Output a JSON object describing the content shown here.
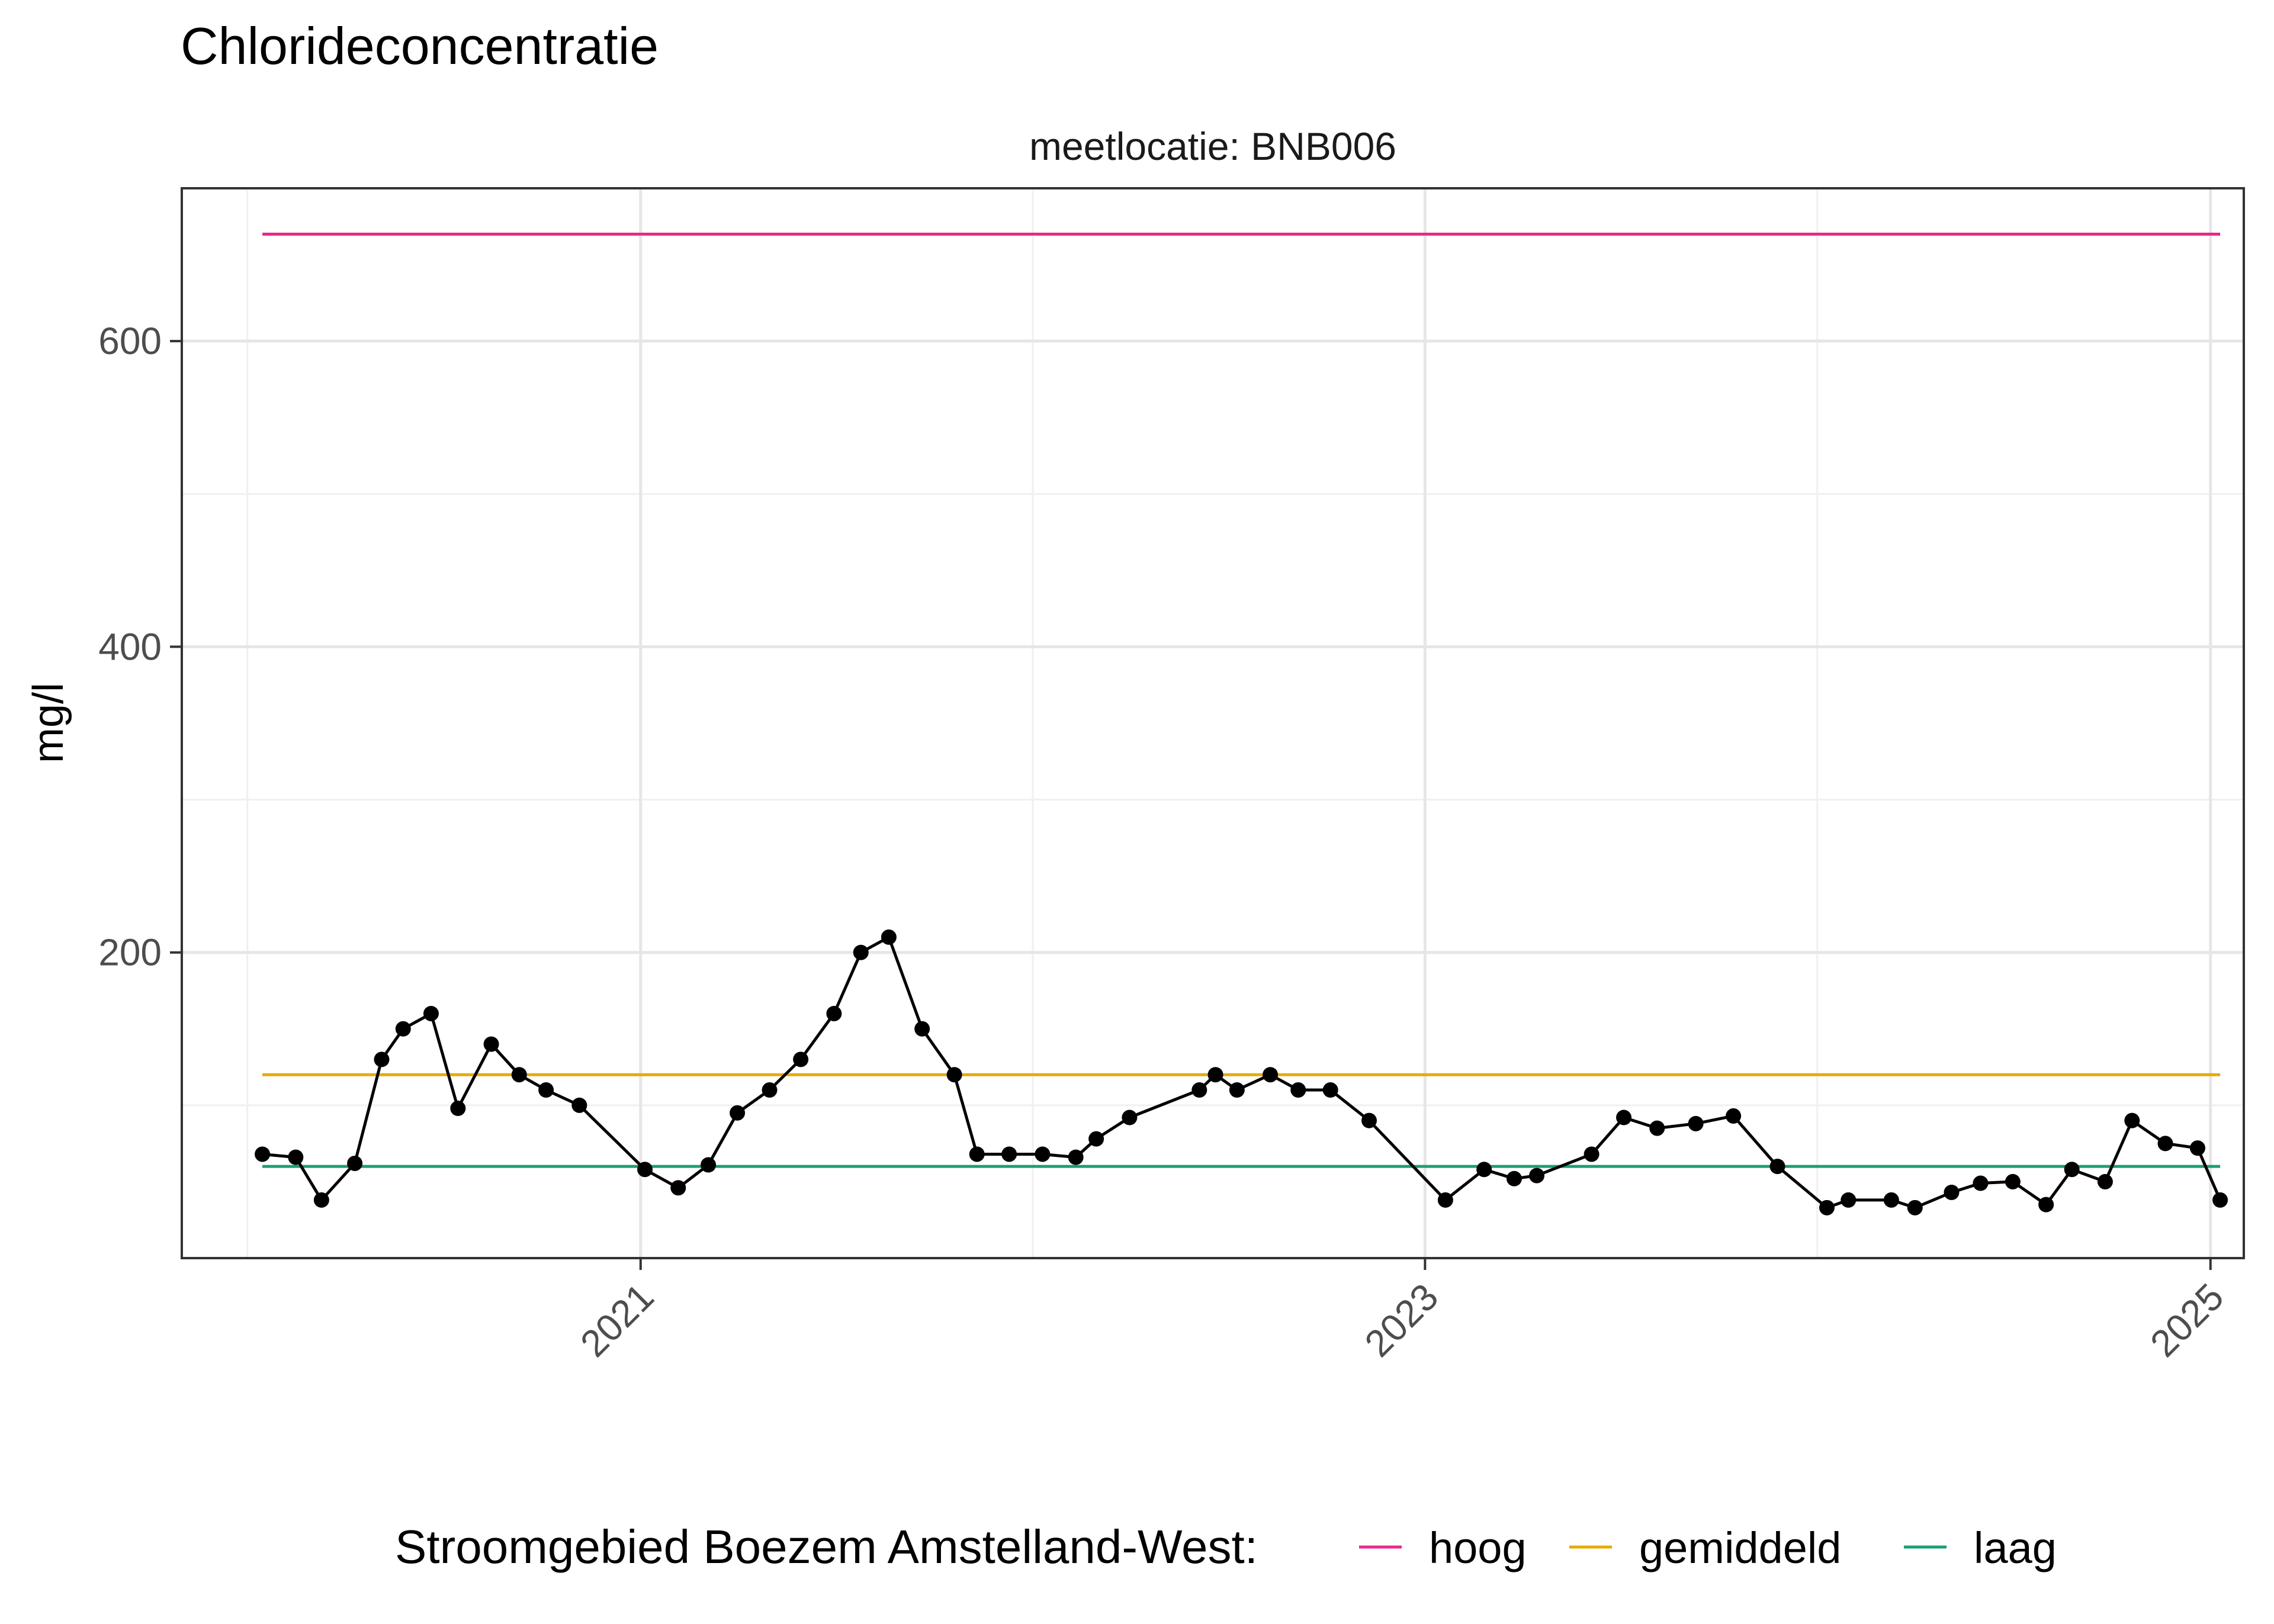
{
  "chart_data": {
    "type": "line",
    "title": "Chlorideconcentratie",
    "facet_label": "meetlocatie: BNB006",
    "ylabel": "mg/l",
    "xlabel": "",
    "ylim": [
      0,
      700
    ],
    "y_ticks": [
      200,
      400,
      600
    ],
    "x_ticks": [
      "2021",
      "2023",
      "2025"
    ],
    "grid": true,
    "legend_position": "bottom",
    "legend_title": "Stroomgebied Boezem Amstelland-West:",
    "series": [
      {
        "name": "",
        "color": "#000000",
        "markers": true,
        "points": [
          [
            "2020-01-15",
            68
          ],
          [
            "2020-02-15",
            66
          ],
          [
            "2020-03-10",
            38
          ],
          [
            "2020-04-10",
            62
          ],
          [
            "2020-05-05",
            130
          ],
          [
            "2020-05-25",
            150
          ],
          [
            "2020-06-20",
            160
          ],
          [
            "2020-07-15",
            98
          ],
          [
            "2020-08-15",
            140
          ],
          [
            "2020-09-10",
            120
          ],
          [
            "2020-10-05",
            110
          ],
          [
            "2020-11-05",
            100
          ],
          [
            "2021-01-05",
            58
          ],
          [
            "2021-02-05",
            46
          ],
          [
            "2021-03-05",
            61
          ],
          [
            "2021-04-01",
            95
          ],
          [
            "2021-05-01",
            110
          ],
          [
            "2021-05-30",
            130
          ],
          [
            "2021-06-30",
            160
          ],
          [
            "2021-07-25",
            200
          ],
          [
            "2021-08-20",
            210
          ],
          [
            "2021-09-20",
            150
          ],
          [
            "2021-10-20",
            120
          ],
          [
            "2021-11-10",
            68
          ],
          [
            "2021-12-10",
            68
          ],
          [
            "2022-01-10",
            68
          ],
          [
            "2022-02-10",
            66
          ],
          [
            "2022-03-01",
            78
          ],
          [
            "2022-04-01",
            92
          ],
          [
            "2022-06-05",
            110
          ],
          [
            "2022-06-20",
            120
          ],
          [
            "2022-07-10",
            110
          ],
          [
            "2022-08-10",
            120
          ],
          [
            "2022-09-05",
            110
          ],
          [
            "2022-10-05",
            110
          ],
          [
            "2022-11-10",
            90
          ],
          [
            "2023-01-20",
            38
          ],
          [
            "2023-02-25",
            58
          ],
          [
            "2023-03-25",
            52
          ],
          [
            "2023-04-15",
            54
          ],
          [
            "2023-06-05",
            68
          ],
          [
            "2023-07-05",
            92
          ],
          [
            "2023-08-05",
            85
          ],
          [
            "2023-09-10",
            88
          ],
          [
            "2023-10-15",
            93
          ],
          [
            "2023-11-25",
            60
          ],
          [
            "2024-01-10",
            33
          ],
          [
            "2024-01-30",
            38
          ],
          [
            "2024-03-10",
            38
          ],
          [
            "2024-04-01",
            33
          ],
          [
            "2024-05-05",
            43
          ],
          [
            "2024-06-01",
            49
          ],
          [
            "2024-07-01",
            50
          ],
          [
            "2024-08-01",
            35
          ],
          [
            "2024-08-25",
            58
          ],
          [
            "2024-09-25",
            50
          ],
          [
            "2024-10-20",
            90
          ],
          [
            "2024-11-20",
            75
          ],
          [
            "2024-12-20",
            72
          ],
          [
            "2025-01-10",
            38
          ]
        ]
      },
      {
        "name": "hoog",
        "color": "#e7298a",
        "type": "reference",
        "value": 670,
        "x_range": [
          "2020-01-15",
          "2025-01-10"
        ]
      },
      {
        "name": "gemiddeld",
        "color": "#e6ab02",
        "type": "reference",
        "value": 120,
        "x_range": [
          "2020-01-15",
          "2025-01-10"
        ]
      },
      {
        "name": "laag",
        "color": "#1b9e77",
        "type": "reference",
        "value": 60,
        "x_range": [
          "2020-01-15",
          "2025-01-10"
        ]
      }
    ]
  }
}
